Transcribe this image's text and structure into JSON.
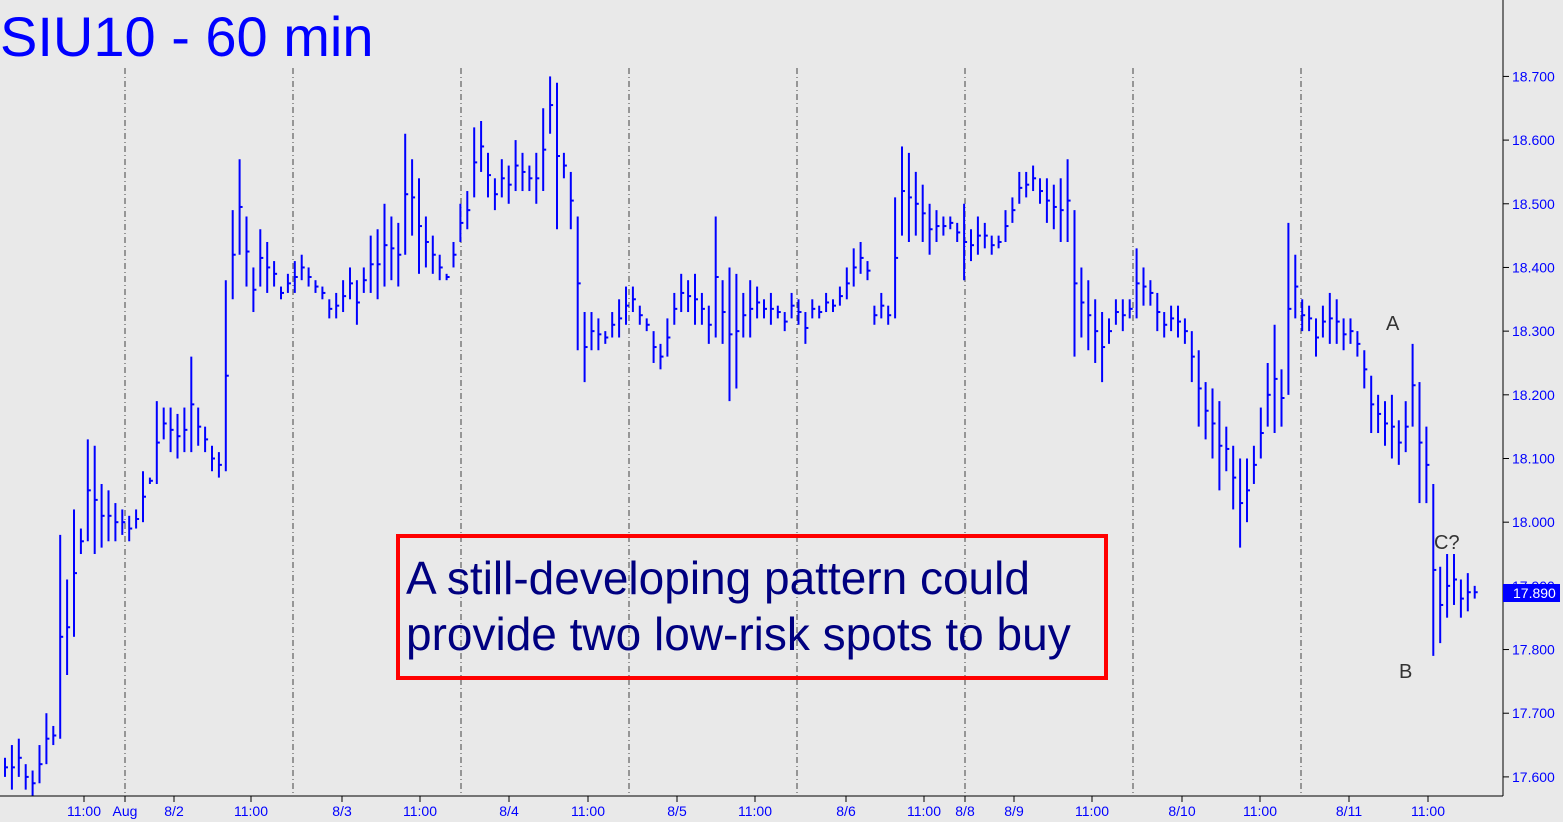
{
  "chart_data": {
    "type": "ohlc",
    "title": "SIU10 - 60 min",
    "ylim": [
      17.57,
      18.82
    ],
    "y_ticks": [
      "18.700",
      "18.600",
      "18.500",
      "18.400",
      "18.300",
      "18.200",
      "18.100",
      "18.000",
      "17.900",
      "17.800",
      "17.700",
      "17.600"
    ],
    "x_ticks": [
      "11:00",
      "Aug",
      "8/2",
      "11:00",
      "8/3",
      "11:00",
      "8/4",
      "11:00",
      "8/5",
      "11:00",
      "8/6",
      "11:00",
      "8/8",
      "8/9",
      "11:00",
      "8/10",
      "11:00",
      "8/11",
      "11:00"
    ],
    "session_count": 8,
    "last_price": "17.890",
    "annotation": {
      "line1": "A still-developing pattern could",
      "line2": "provide two low-risk spots to buy"
    },
    "wave_labels": {
      "a": "A",
      "b": "B",
      "c": "C?"
    },
    "grid": "vertical dashed session separators",
    "bars": [
      [
        17.63,
        17.6
      ],
      [
        17.65,
        17.58
      ],
      [
        17.66,
        17.6
      ],
      [
        17.62,
        17.58
      ],
      [
        17.61,
        17.57
      ],
      [
        17.65,
        17.59
      ],
      [
        17.7,
        17.62
      ],
      [
        17.68,
        17.65
      ],
      [
        17.98,
        17.66
      ],
      [
        17.91,
        17.76
      ],
      [
        18.02,
        17.82
      ],
      [
        17.99,
        17.95
      ],
      [
        18.13,
        17.97
      ],
      [
        18.12,
        17.95
      ],
      [
        18.06,
        17.96
      ],
      [
        18.05,
        17.97
      ],
      [
        18.03,
        17.97
      ],
      [
        18.02,
        17.98
      ],
      [
        18.01,
        17.97
      ],
      [
        18.02,
        17.99
      ],
      [
        18.08,
        18.0
      ],
      [
        18.07,
        18.06
      ],
      [
        18.19,
        18.06
      ],
      [
        18.18,
        18.13
      ],
      [
        18.18,
        18.11
      ],
      [
        18.17,
        18.1
      ],
      [
        18.18,
        18.11
      ],
      [
        18.26,
        18.11
      ],
      [
        18.18,
        18.12
      ],
      [
        18.15,
        18.11
      ],
      [
        18.12,
        18.08
      ],
      [
        18.11,
        18.07
      ],
      [
        18.38,
        18.08
      ],
      [
        18.49,
        18.35
      ],
      [
        18.57,
        18.42
      ],
      [
        18.48,
        18.37
      ],
      [
        18.4,
        18.33
      ],
      [
        18.46,
        18.37
      ],
      [
        18.44,
        18.36
      ],
      [
        18.41,
        18.37
      ],
      [
        18.37,
        18.35
      ],
      [
        18.39,
        18.36
      ],
      [
        18.41,
        18.36
      ],
      [
        18.42,
        18.38
      ],
      [
        18.4,
        18.37
      ],
      [
        18.38,
        18.36
      ],
      [
        18.37,
        18.35
      ],
      [
        18.35,
        18.32
      ],
      [
        18.36,
        18.32
      ],
      [
        18.38,
        18.33
      ],
      [
        18.4,
        18.35
      ],
      [
        18.38,
        18.31
      ],
      [
        18.4,
        18.36
      ],
      [
        18.45,
        18.36
      ],
      [
        18.46,
        18.35
      ],
      [
        18.5,
        18.37
      ],
      [
        18.48,
        18.38
      ],
      [
        18.47,
        18.37
      ],
      [
        18.61,
        18.42
      ],
      [
        18.57,
        18.45
      ],
      [
        18.54,
        18.39
      ],
      [
        18.48,
        18.4
      ],
      [
        18.45,
        18.39
      ],
      [
        18.42,
        18.38
      ],
      [
        18.39,
        18.38
      ],
      [
        18.44,
        18.4
      ],
      [
        18.5,
        18.44
      ],
      [
        18.52,
        18.46
      ],
      [
        18.62,
        18.51
      ],
      [
        18.63,
        18.55
      ],
      [
        18.58,
        18.51
      ],
      [
        18.54,
        18.49
      ],
      [
        18.57,
        18.51
      ],
      [
        18.56,
        18.5
      ],
      [
        18.6,
        18.52
      ],
      [
        18.58,
        18.52
      ],
      [
        18.56,
        18.52
      ],
      [
        18.58,
        18.5
      ],
      [
        18.65,
        18.52
      ],
      [
        18.7,
        18.61
      ],
      [
        18.69,
        18.46
      ],
      [
        18.58,
        18.54
      ],
      [
        18.55,
        18.46
      ],
      [
        18.48,
        18.27
      ],
      [
        18.33,
        18.22
      ],
      [
        18.33,
        18.27
      ],
      [
        18.32,
        18.27
      ],
      [
        18.3,
        18.28
      ],
      [
        18.33,
        18.29
      ],
      [
        18.35,
        18.29
      ],
      [
        18.37,
        18.31
      ],
      [
        18.37,
        18.33
      ],
      [
        18.34,
        18.31
      ],
      [
        18.32,
        18.3
      ],
      [
        18.3,
        18.25
      ],
      [
        18.28,
        18.24
      ],
      [
        18.32,
        18.26
      ],
      [
        18.36,
        18.31
      ],
      [
        18.39,
        18.33
      ],
      [
        18.38,
        18.33
      ],
      [
        18.39,
        18.31
      ],
      [
        18.36,
        18.31
      ],
      [
        18.34,
        18.28
      ],
      [
        18.48,
        18.29
      ],
      [
        18.38,
        18.28
      ],
      [
        18.4,
        18.19
      ],
      [
        18.39,
        18.21
      ],
      [
        18.36,
        18.29
      ],
      [
        18.38,
        18.29
      ],
      [
        18.37,
        18.32
      ],
      [
        18.35,
        18.32
      ],
      [
        18.36,
        18.31
      ],
      [
        18.34,
        18.32
      ],
      [
        18.33,
        18.3
      ],
      [
        18.36,
        18.32
      ],
      [
        18.35,
        18.31
      ],
      [
        18.33,
        18.28
      ],
      [
        18.35,
        18.32
      ],
      [
        18.34,
        18.32
      ],
      [
        18.36,
        18.33
      ],
      [
        18.35,
        18.33
      ],
      [
        18.37,
        18.34
      ],
      [
        18.4,
        18.35
      ],
      [
        18.43,
        18.37
      ],
      [
        18.44,
        18.39
      ],
      [
        18.41,
        18.38
      ],
      [
        18.34,
        18.31
      ],
      [
        18.36,
        18.32
      ],
      [
        18.34,
        18.31
      ],
      [
        18.51,
        18.32
      ],
      [
        18.59,
        18.45
      ],
      [
        18.58,
        18.44
      ],
      [
        18.55,
        18.45
      ],
      [
        18.53,
        18.44
      ],
      [
        18.5,
        18.42
      ],
      [
        18.49,
        18.44
      ],
      [
        18.48,
        18.45
      ],
      [
        18.48,
        18.46
      ],
      [
        18.47,
        18.44
      ],
      [
        18.5,
        18.38
      ],
      [
        18.46,
        18.41
      ],
      [
        18.48,
        18.42
      ],
      [
        18.47,
        18.43
      ],
      [
        18.45,
        18.42
      ],
      [
        18.45,
        18.43
      ],
      [
        18.49,
        18.44
      ],
      [
        18.51,
        18.47
      ],
      [
        18.55,
        18.5
      ],
      [
        18.55,
        18.51
      ],
      [
        18.56,
        18.52
      ],
      [
        18.54,
        18.5
      ],
      [
        18.54,
        18.47
      ],
      [
        18.53,
        18.46
      ],
      [
        18.54,
        18.44
      ],
      [
        18.57,
        18.44
      ],
      [
        18.49,
        18.26
      ],
      [
        18.4,
        18.29
      ],
      [
        18.38,
        18.27
      ],
      [
        18.35,
        18.25
      ],
      [
        18.33,
        18.22
      ],
      [
        18.32,
        18.28
      ],
      [
        18.35,
        18.31
      ],
      [
        18.35,
        18.3
      ],
      [
        18.35,
        18.32
      ],
      [
        18.43,
        18.32
      ],
      [
        18.4,
        18.34
      ],
      [
        18.38,
        18.34
      ],
      [
        18.36,
        18.3
      ],
      [
        18.33,
        18.29
      ],
      [
        18.34,
        18.3
      ],
      [
        18.34,
        18.29
      ],
      [
        18.32,
        18.28
      ],
      [
        18.3,
        18.22
      ],
      [
        18.27,
        18.15
      ],
      [
        18.22,
        18.13
      ],
      [
        18.21,
        18.1
      ],
      [
        18.19,
        18.05
      ],
      [
        18.15,
        18.08
      ],
      [
        18.12,
        18.02
      ],
      [
        18.1,
        17.96
      ],
      [
        18.1,
        18.0
      ],
      [
        18.12,
        18.06
      ],
      [
        18.18,
        18.1
      ],
      [
        18.25,
        18.15
      ],
      [
        18.31,
        18.14
      ],
      [
        18.24,
        18.15
      ],
      [
        18.47,
        18.2
      ],
      [
        18.42,
        18.32
      ],
      [
        18.35,
        18.3
      ],
      [
        18.34,
        18.3
      ],
      [
        18.32,
        18.26
      ],
      [
        18.34,
        18.29
      ],
      [
        18.36,
        18.28
      ],
      [
        18.35,
        18.28
      ],
      [
        18.32,
        18.27
      ],
      [
        18.32,
        18.28
      ],
      [
        18.3,
        18.26
      ],
      [
        18.27,
        18.21
      ],
      [
        18.23,
        18.14
      ],
      [
        18.2,
        18.14
      ],
      [
        18.19,
        18.12
      ],
      [
        18.2,
        18.1
      ],
      [
        18.16,
        18.09
      ],
      [
        18.19,
        18.11
      ],
      [
        18.28,
        18.15
      ],
      [
        18.22,
        18.03
      ],
      [
        18.15,
        18.03
      ],
      [
        18.06,
        17.79
      ],
      [
        17.93,
        17.81
      ],
      [
        17.95,
        17.85
      ],
      [
        17.95,
        17.87
      ],
      [
        17.91,
        17.85
      ],
      [
        17.92,
        17.86
      ],
      [
        17.9,
        17.88
      ]
    ]
  }
}
